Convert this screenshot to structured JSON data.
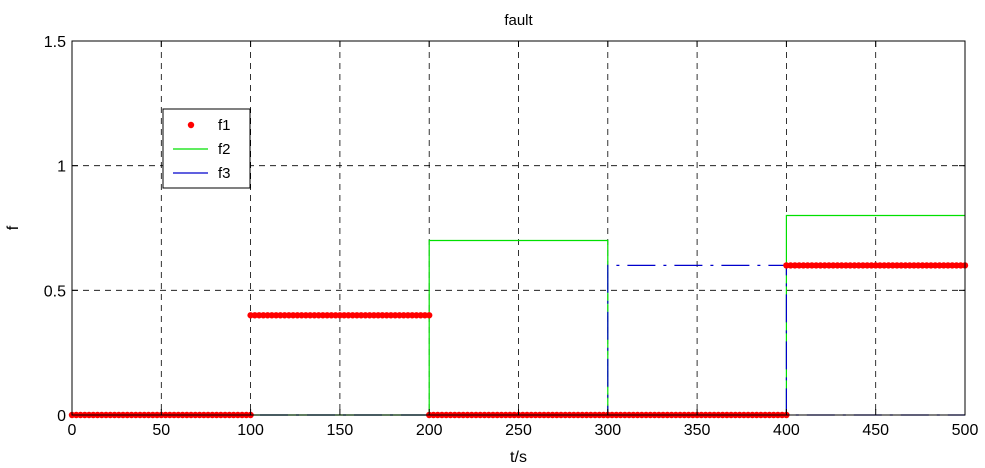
{
  "chart_data": {
    "type": "line",
    "title": "fault",
    "xlabel": "t/s",
    "ylabel": "f",
    "xlim": [
      0,
      500
    ],
    "ylim": [
      0,
      1.5
    ],
    "xticks": [
      0,
      50,
      100,
      150,
      200,
      250,
      300,
      350,
      400,
      450,
      500
    ],
    "yticks": [
      0,
      0.5,
      1,
      1.5
    ],
    "xtick_labels": [
      "0",
      "50",
      "100",
      "150",
      "200",
      "250",
      "300",
      "350",
      "400",
      "450",
      "500"
    ],
    "ytick_labels": [
      "0",
      "0.5",
      "1",
      "1.5"
    ],
    "grid": true,
    "legend_position": "upper-left",
    "series": [
      {
        "name": "f1",
        "style": "dots",
        "color": "#ff0000",
        "segments": [
          {
            "x0": 0,
            "x1": 100,
            "y": 0
          },
          {
            "x0": 100,
            "x1": 200,
            "y": 0.4
          },
          {
            "x0": 200,
            "x1": 300,
            "y": 0
          },
          {
            "x0": 300,
            "x1": 400,
            "y": 0
          },
          {
            "x0": 400,
            "x1": 500,
            "y": 0.6
          }
        ]
      },
      {
        "name": "f2",
        "style": "solid",
        "color": "#00e000",
        "points": [
          [
            0,
            0
          ],
          [
            200,
            0
          ],
          [
            200,
            0.7
          ],
          [
            300,
            0.7
          ],
          [
            300,
            0
          ],
          [
            400,
            0
          ],
          [
            400,
            0.8
          ],
          [
            500,
            0.8
          ]
        ]
      },
      {
        "name": "f3",
        "style": "dashdot",
        "color": "#0000cc",
        "points": [
          [
            0,
            0
          ],
          [
            300,
            0
          ],
          [
            300,
            0.6
          ],
          [
            400,
            0.6
          ],
          [
            400,
            0
          ],
          [
            500,
            0
          ]
        ]
      }
    ]
  }
}
